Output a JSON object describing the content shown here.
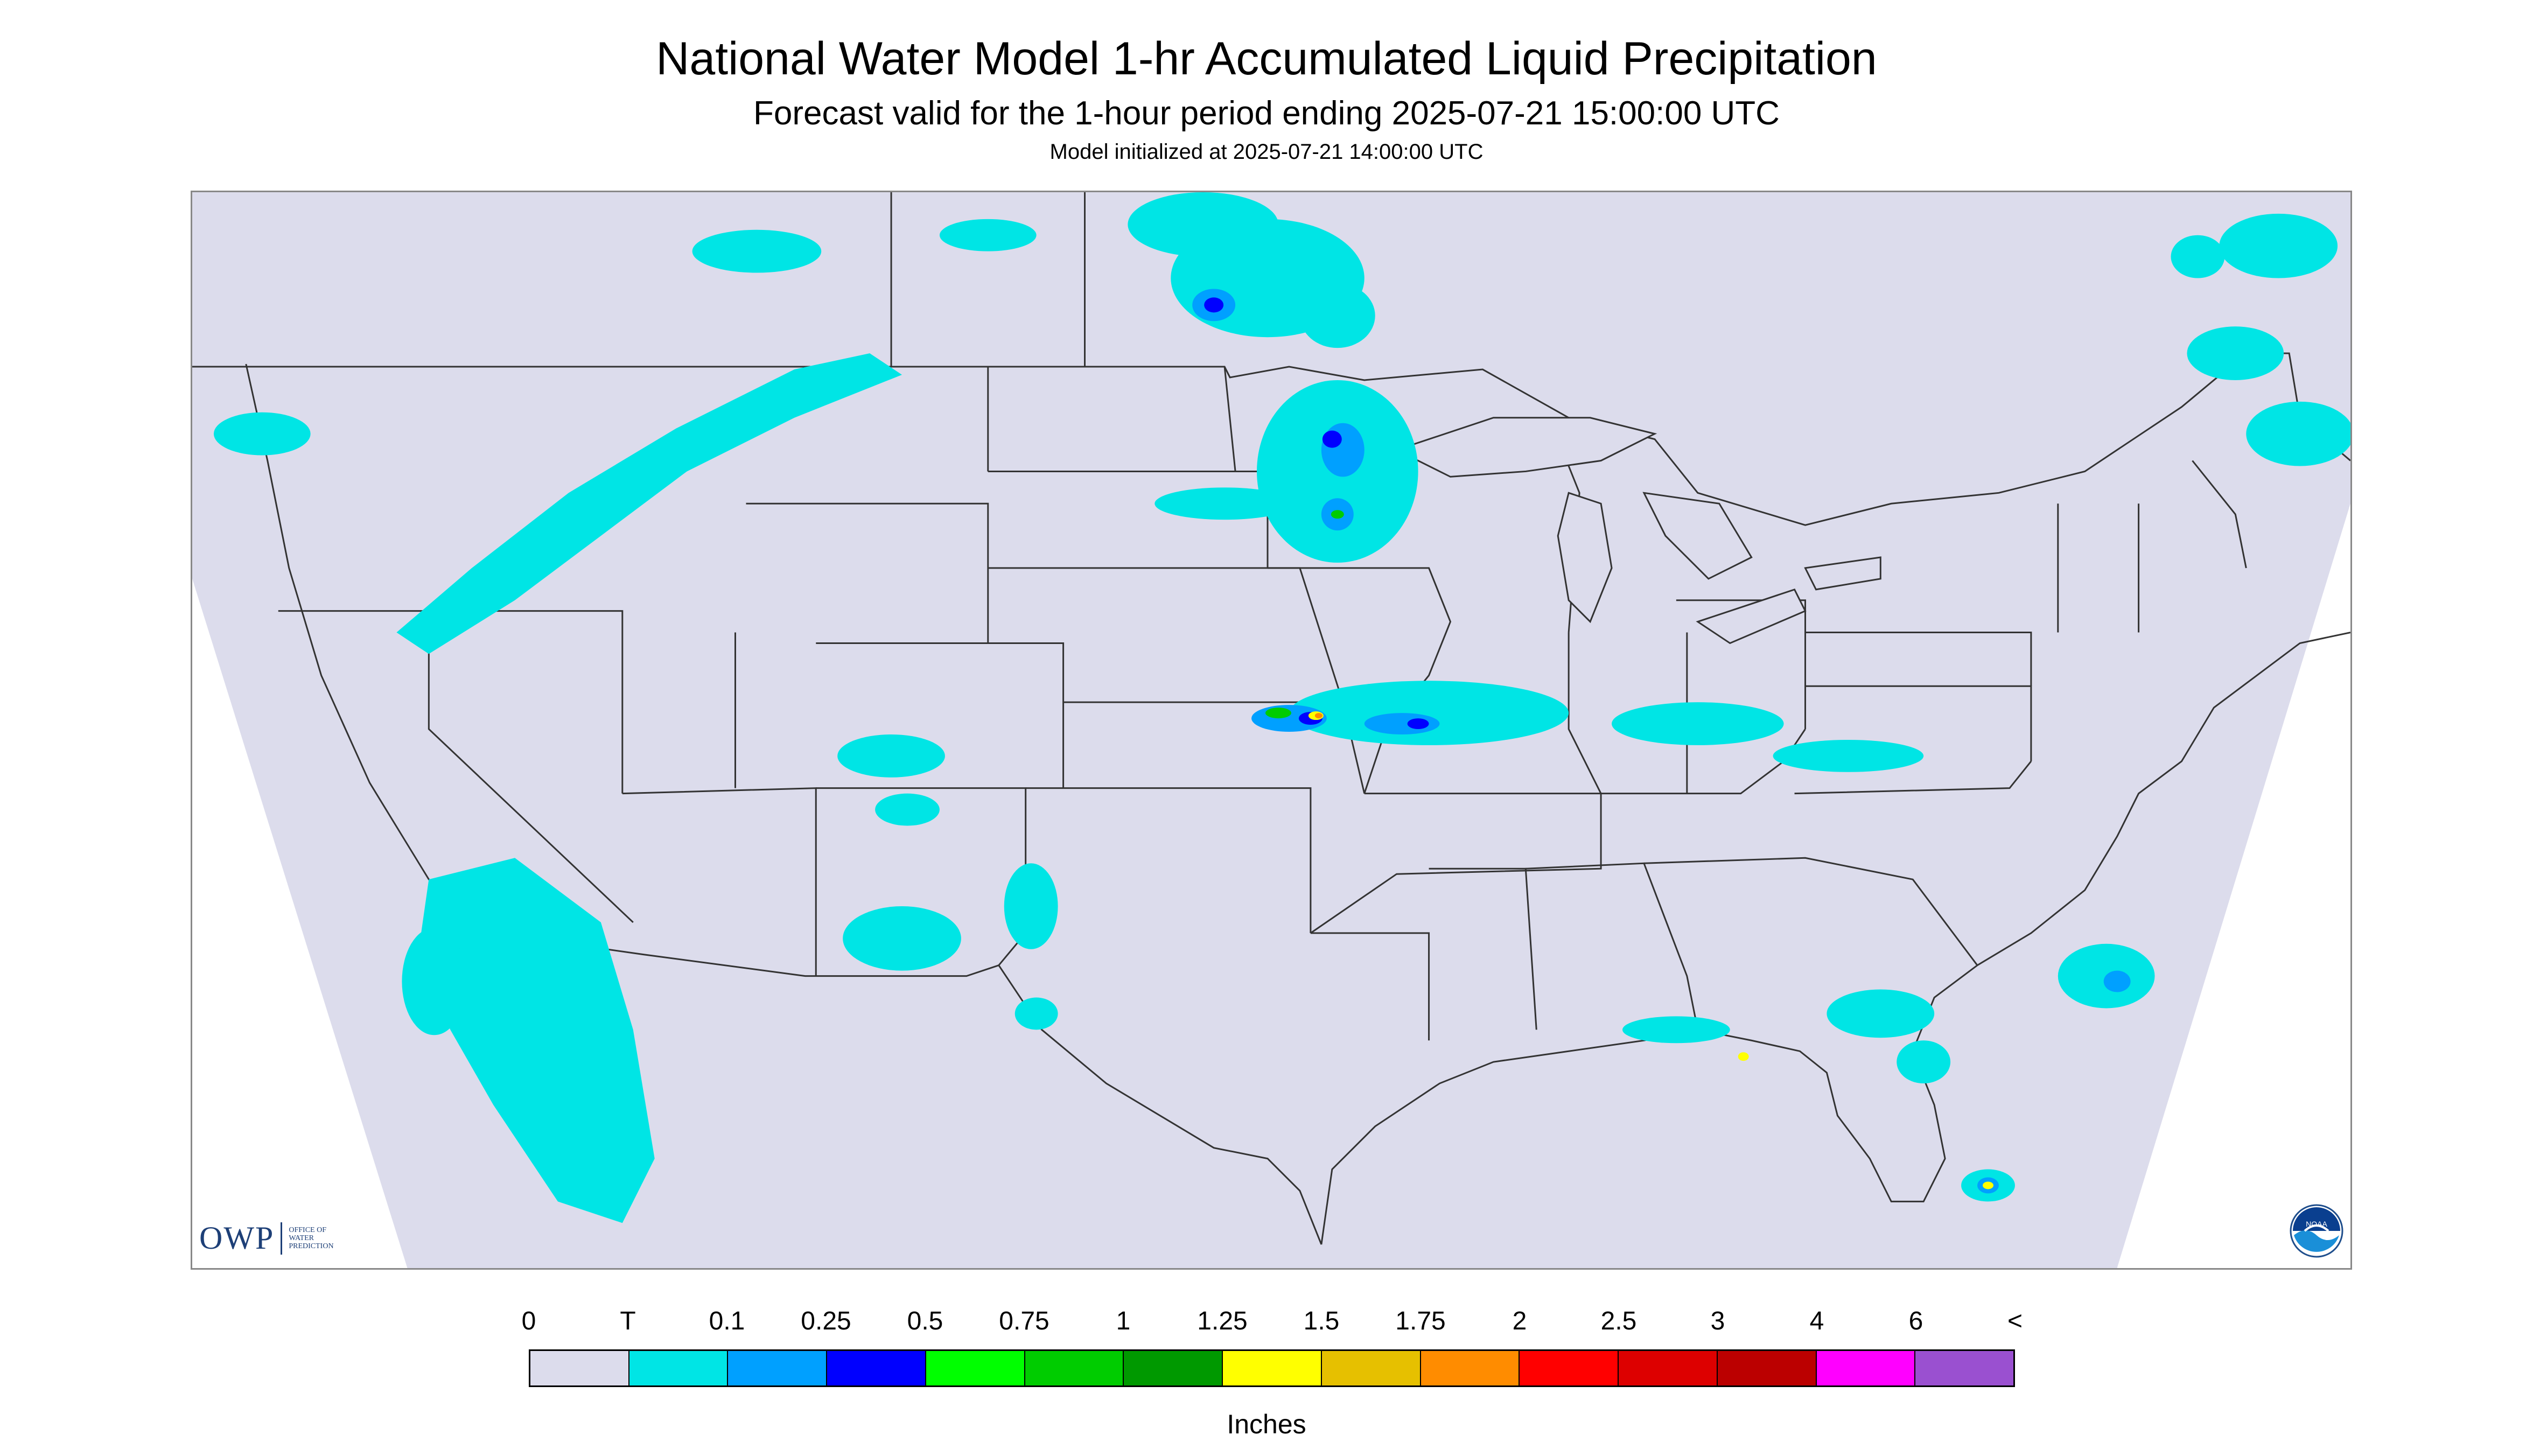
{
  "header": {
    "title": "National Water Model 1-hr Accumulated Liquid Precipitation",
    "subtitle": "Forecast valid for the 1-hour period ending 2025-07-21 15:00:00 UTC",
    "init_line": "Model initialized at 2025-07-21 14:00:00 UTC"
  },
  "map": {
    "background_color": "#dcdcec",
    "outside_color": "#ffffff",
    "border_color": "#333333",
    "precip_colors": {
      "trace": "#00e5e5",
      "light": "#00a0ff",
      "moderate": "#0000ff",
      "heavy_green": "#00cc00",
      "yellow": "#ffff00",
      "orange": "#ff8c00"
    }
  },
  "logos": {
    "owp_mark": "OWP",
    "owp_text": "OFFICE OF\nWATER\nPREDICTION",
    "noaa_icon": "noaa-logo-icon",
    "noaa_text": "NOAA"
  },
  "legend": {
    "unit": "Inches",
    "ticks": [
      "0",
      "T",
      "0.1",
      "0.25",
      "0.5",
      "0.75",
      "1",
      "1.25",
      "1.5",
      "1.75",
      "2",
      "2.5",
      "3",
      "4",
      "6",
      "<"
    ],
    "colors": [
      "#dcdcec",
      "#00e5e5",
      "#00a0ff",
      "#0000ff",
      "#00ff00",
      "#00cc00",
      "#009900",
      "#ffff00",
      "#e6c000",
      "#ff8c00",
      "#ff0000",
      "#dd0000",
      "#bb0000",
      "#ff00ff",
      "#9a50d0"
    ]
  }
}
